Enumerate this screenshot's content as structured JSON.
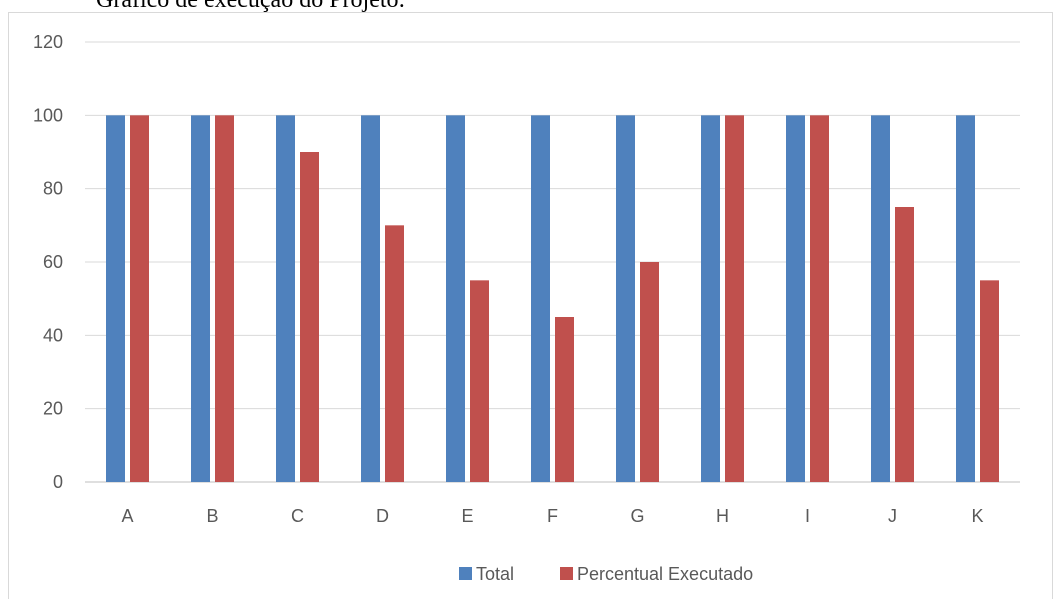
{
  "caption": "Gráfico de execução do Projeto:",
  "chart_data": {
    "type": "bar",
    "title": "",
    "xlabel": "",
    "ylabel": "",
    "categories": [
      "A",
      "B",
      "C",
      "D",
      "E",
      "F",
      "G",
      "H",
      "I",
      "J",
      "K"
    ],
    "series": [
      {
        "name": "Total",
        "color": "#4f81bd",
        "values": [
          100,
          100,
          100,
          100,
          100,
          100,
          100,
          100,
          100,
          100,
          100
        ]
      },
      {
        "name": "Percentual Executado",
        "color": "#c0504d",
        "values": [
          100,
          100,
          90,
          70,
          55,
          45,
          60,
          100,
          100,
          75,
          55
        ]
      }
    ],
    "ylim": [
      0,
      120
    ],
    "yticks": [
      0,
      20,
      40,
      60,
      80,
      100,
      120
    ],
    "grid": true,
    "legend": "bottom"
  }
}
